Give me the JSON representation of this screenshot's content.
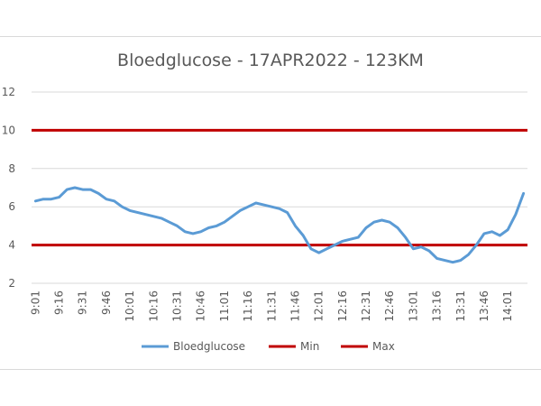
{
  "chart_data": {
    "type": "line",
    "title": "Bloedglucose - 17APR2022 - 123KM",
    "xlabel": "",
    "ylabel": "",
    "ylim": [
      2,
      12
    ],
    "yticks": [
      2,
      4,
      6,
      8,
      10,
      12
    ],
    "grid": true,
    "legend_position": "bottom",
    "x": [
      "9:01",
      "9:06",
      "9:11",
      "9:16",
      "9:21",
      "9:26",
      "9:31",
      "9:36",
      "9:41",
      "9:46",
      "9:51",
      "9:56",
      "10:01",
      "10:06",
      "10:11",
      "10:16",
      "10:21",
      "10:26",
      "10:31",
      "10:36",
      "10:41",
      "10:46",
      "10:51",
      "10:56",
      "11:01",
      "11:06",
      "11:11",
      "11:16",
      "11:21",
      "11:26",
      "11:31",
      "11:36",
      "11:41",
      "11:46",
      "11:51",
      "11:56",
      "12:01",
      "12:06",
      "12:11",
      "12:16",
      "12:21",
      "12:26",
      "12:31",
      "12:36",
      "12:41",
      "12:46",
      "12:51",
      "12:56",
      "13:01",
      "13:06",
      "13:11",
      "13:16",
      "13:21",
      "13:26",
      "13:31",
      "13:36",
      "13:41",
      "13:46",
      "13:51",
      "13:56",
      "14:01",
      "14:06",
      "14:11"
    ],
    "x_tick_labels": [
      "9:01",
      "9:16",
      "9:31",
      "9:46",
      "10:01",
      "10:16",
      "10:31",
      "10:46",
      "11:01",
      "11:16",
      "11:31",
      "11:46",
      "12:01",
      "12:16",
      "12:31",
      "12:46",
      "13:01",
      "13:16",
      "13:31",
      "13:46",
      "14:01"
    ],
    "series": [
      {
        "name": "Bloedglucose",
        "color": "#5b9bd5",
        "values": [
          6.3,
          6.4,
          6.4,
          6.5,
          6.9,
          7.0,
          6.9,
          6.9,
          6.7,
          6.4,
          6.3,
          6.0,
          5.8,
          5.7,
          5.6,
          5.5,
          5.4,
          5.2,
          5.0,
          4.7,
          4.6,
          4.7,
          4.9,
          5.0,
          5.2,
          5.5,
          5.8,
          6.0,
          6.2,
          6.1,
          6.0,
          5.9,
          5.7,
          5.0,
          4.5,
          3.8,
          3.6,
          3.8,
          4.0,
          4.2,
          4.3,
          4.4,
          4.9,
          5.2,
          5.3,
          5.2,
          4.9,
          4.4,
          3.8,
          3.9,
          3.7,
          3.3,
          3.2,
          3.1,
          3.2,
          3.5,
          4.0,
          4.6,
          4.7,
          4.5,
          4.8,
          5.6,
          6.7
        ]
      },
      {
        "name": "Min",
        "color": "#c00000",
        "value": 4
      },
      {
        "name": "Max",
        "color": "#c00000",
        "value": 10
      }
    ]
  }
}
